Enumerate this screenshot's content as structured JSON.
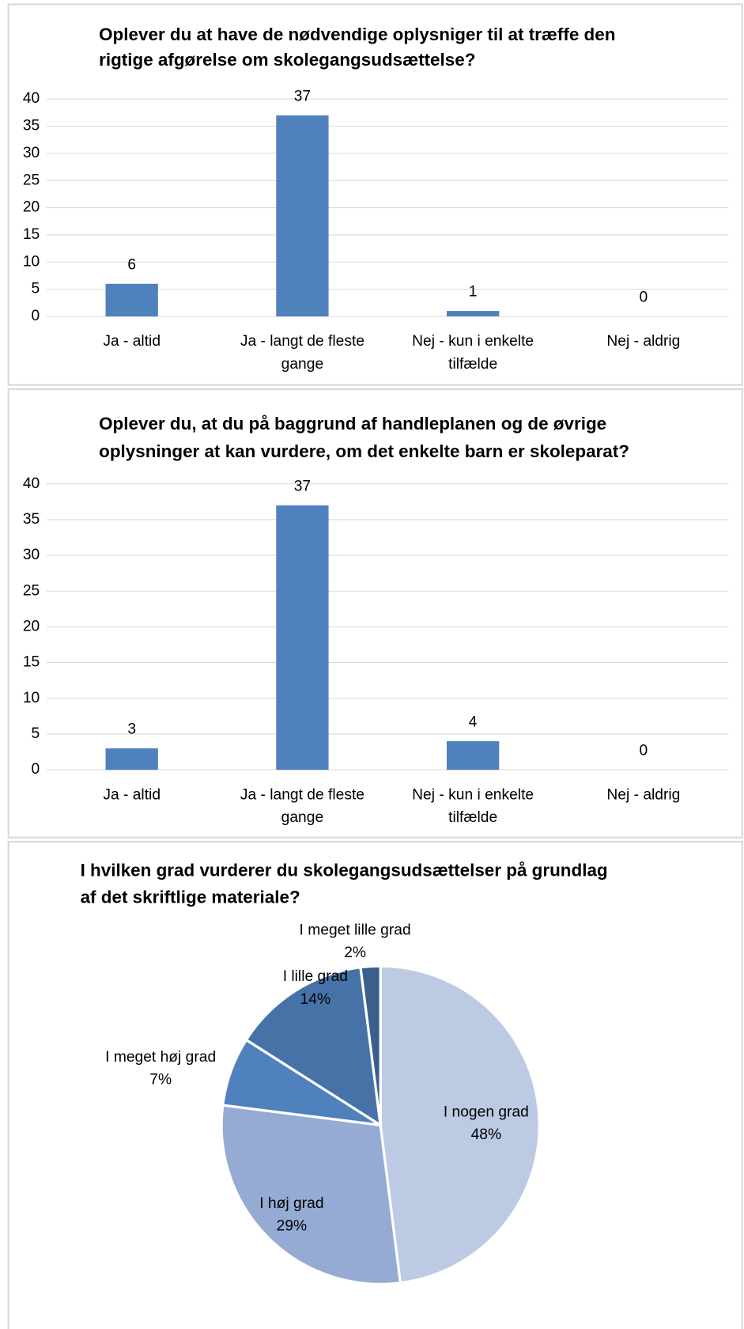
{
  "chart_data": [
    {
      "type": "bar",
      "title": [
        "Oplever du at have de nødvendige oplysniger til at træffe den",
        "rigtige afgørelse om skolegangsudsættelse?"
      ],
      "categories": [
        [
          "Ja - altid"
        ],
        [
          "Ja - langt de fleste",
          "gange"
        ],
        [
          "Nej - kun i enkelte",
          "tilfælde"
        ],
        [
          "Nej - aldrig"
        ]
      ],
      "values": [
        6,
        37,
        1,
        0
      ],
      "color": "#4f81bd",
      "ylim": [
        0,
        40
      ],
      "yticks": [
        0,
        5,
        10,
        15,
        20,
        25,
        30,
        35,
        40
      ],
      "grid": true
    },
    {
      "type": "bar",
      "title": [
        "Oplever du, at du på baggrund af handleplanen og de øvrige",
        "oplysninger at kan vurdere, om det enkelte barn er skoleparat?"
      ],
      "categories": [
        [
          "Ja - altid"
        ],
        [
          "Ja - langt de fleste",
          "gange"
        ],
        [
          "Nej - kun i enkelte",
          "tilfælde"
        ],
        [
          "Nej - aldrig"
        ]
      ],
      "values": [
        3,
        37,
        4,
        0
      ],
      "color": "#4f81bd",
      "ylim": [
        0,
        40
      ],
      "yticks": [
        0,
        5,
        10,
        15,
        20,
        25,
        30,
        35,
        40
      ],
      "grid": true
    },
    {
      "type": "pie",
      "title": [
        "I hvilken grad vurderer du skolegangsudsættelser på grundlag",
        "af det skriftlige materiale?"
      ],
      "categories": [
        "I nogen grad",
        "I høj grad",
        "I meget høj grad",
        "I lille grad",
        "I meget lille grad"
      ],
      "values": [
        48,
        29,
        7,
        14,
        2
      ],
      "value_labels": [
        "48%",
        "29%",
        "7%",
        "14%",
        "2%"
      ],
      "colors": [
        "#bccae3",
        "#95abd3",
        "#4f81bd",
        "#4672a8",
        "#3a5f8d"
      ]
    }
  ]
}
